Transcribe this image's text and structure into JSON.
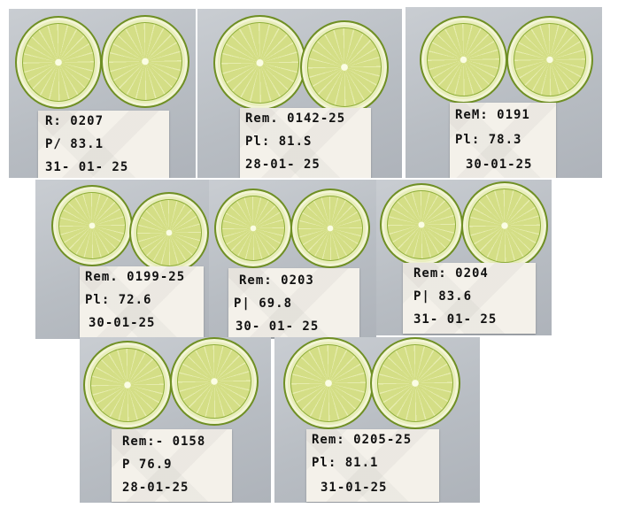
{
  "photos": [
    {
      "line1": "R: 0207",
      "line2": "P/ 83.1",
      "line3": "31- 01- 25"
    },
    {
      "line1": "Rem. 0142-25",
      "line2": "Pl: 81.S",
      "line3": "28-01- 25"
    },
    {
      "line1": "ReM: 0191",
      "line2": "Pl: 78.3",
      "line3": "30-01-25"
    },
    {
      "line1": "Rem. 0199-25",
      "line2": "Pl: 72.6",
      "line3": "30-01-25"
    },
    {
      "line1": "Rem: 0203",
      "line2": "P| 69.8",
      "line3": "30- 01- 25"
    },
    {
      "line1": "Rem: 0204",
      "line2": "P| 83.6",
      "line3": "31- 01- 25"
    },
    {
      "line1": "Rem:- 0158",
      "line2": "P 76.9",
      "line3": "28-01-25"
    },
    {
      "line1": "Rem: 0205-25",
      "line2": "Pl: 81.1",
      "line3": "31-01-25"
    }
  ]
}
